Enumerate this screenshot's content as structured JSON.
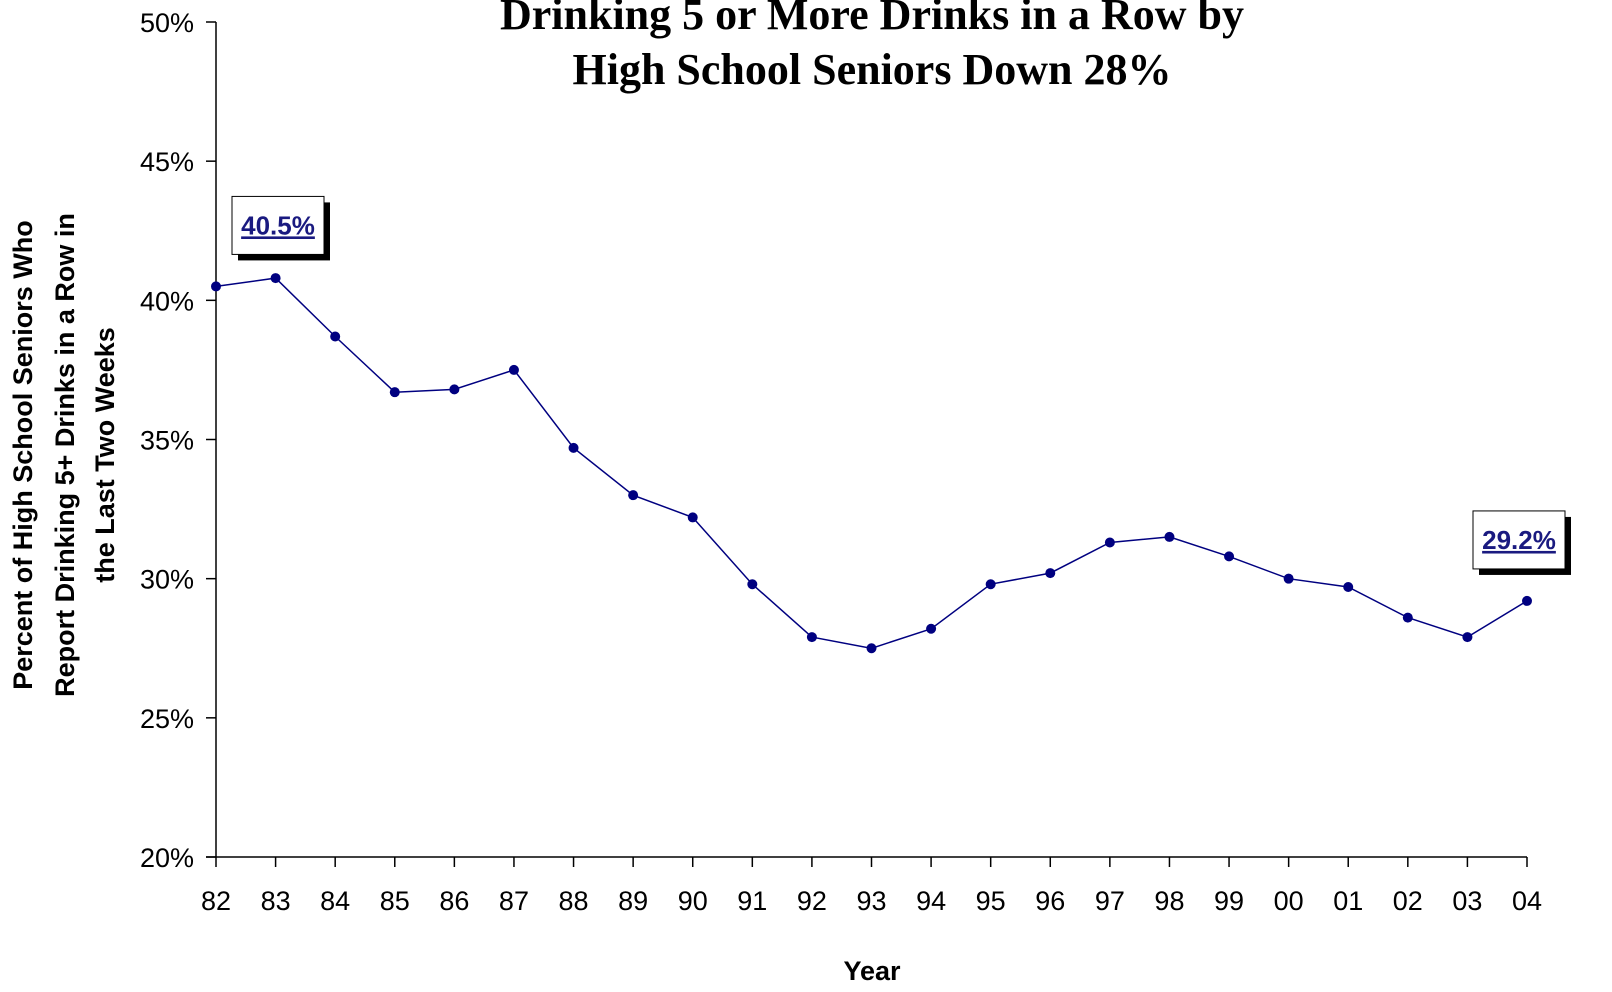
{
  "chart_data": {
    "type": "line",
    "title_lines": [
      "Drinking 5 or More Drinks in a Row by",
      "High School Seniors Down 28%"
    ],
    "xlabel": "Year",
    "ylabel_lines": [
      "Percent of High School Seniors Who",
      "Report Drinking 5+ Drinks in a Row in",
      "the Last Two Weeks"
    ],
    "x": [
      "82",
      "83",
      "84",
      "85",
      "86",
      "87",
      "88",
      "89",
      "90",
      "91",
      "92",
      "93",
      "94",
      "95",
      "96",
      "97",
      "98",
      "99",
      "00",
      "01",
      "02",
      "03",
      "04"
    ],
    "series": [
      {
        "values": [
          40.5,
          40.8,
          38.7,
          36.7,
          36.8,
          37.5,
          34.7,
          33.0,
          32.2,
          29.8,
          27.9,
          27.5,
          28.2,
          29.8,
          30.2,
          31.3,
          31.5,
          30.8,
          30.0,
          29.7,
          28.6,
          27.9,
          29.2
        ]
      }
    ],
    "ylim": [
      20,
      50
    ],
    "yticks": [
      20,
      25,
      30,
      35,
      40,
      45,
      50
    ],
    "ytick_labels": [
      "20%",
      "25%",
      "30%",
      "35%",
      "40%",
      "45%",
      "50%"
    ],
    "grid": false,
    "annotations": [
      {
        "text": "40.5%",
        "year": "82",
        "value": 40.5
      },
      {
        "text": "29.2%",
        "year": "04",
        "value": 29.2
      }
    ],
    "colors": {
      "series": "#000080",
      "axis": "#000000",
      "callout_text": "#1a1a80"
    }
  }
}
